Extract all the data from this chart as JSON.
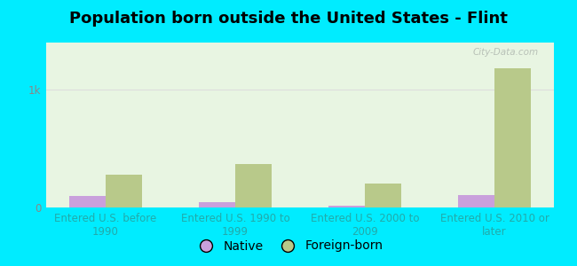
{
  "title": "Population born outside the United States - Flint",
  "categories": [
    "Entered U.S. before\n1990",
    "Entered U.S. 1990 to\n1999",
    "Entered U.S. 2000 to\n2009",
    "Entered U.S. 2010 or\nlater"
  ],
  "native_values": [
    95,
    45,
    12,
    105
  ],
  "foreign_values": [
    280,
    370,
    200,
    1180
  ],
  "native_color": "#c9a0dc",
  "foreign_color": "#b8c98a",
  "background_outer": "#00ecff",
  "background_plot": "#e8f5e2",
  "ylim": [
    0,
    1400
  ],
  "ytick_labels": [
    "0",
    "1k"
  ],
  "ytick_vals": [
    0,
    1000
  ],
  "bar_width": 0.28,
  "title_fontsize": 13,
  "tick_label_fontsize": 8.5,
  "legend_fontsize": 10,
  "watermark_text": "City-Data.com",
  "grid_color": "#dddddd",
  "label_color": "#22aaaa",
  "ytick_color": "#888888"
}
